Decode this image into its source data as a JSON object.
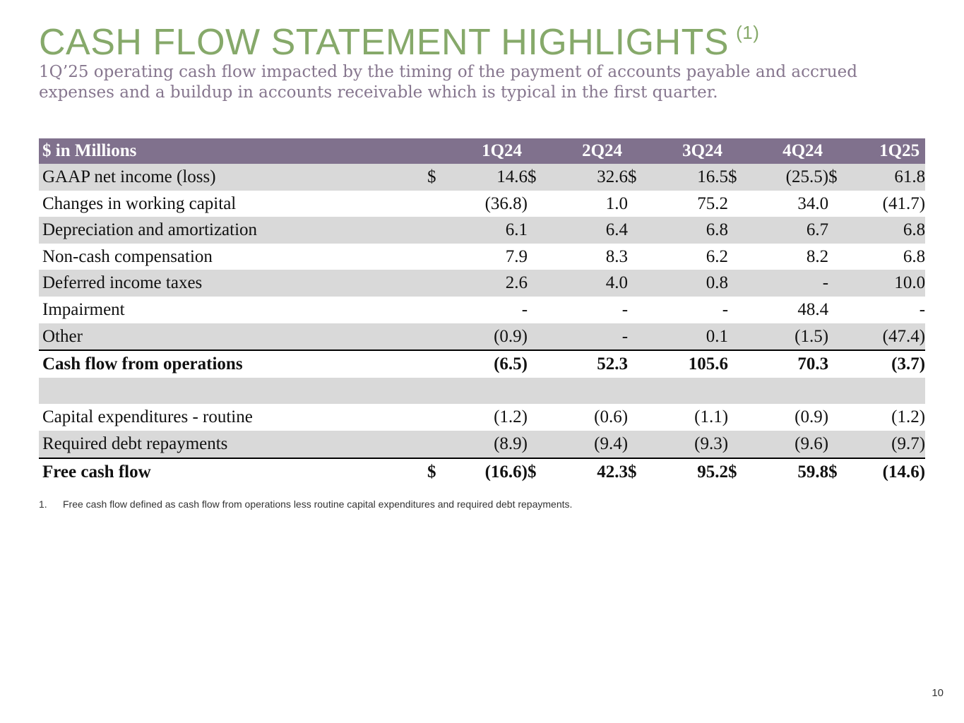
{
  "slide": {
    "title": "CASH FLOW STATEMENT HIGHLIGHTS",
    "title_sup": "(1)",
    "subtitle": "1Q’25 operating cash flow impacted by the timing of the payment of accounts payable and accrued expenses and a buildup in accounts receivable which is typical in the first quarter.",
    "footnote_number": "1.",
    "footnote_text": "Free cash flow defined as cash flow from operations less routine capital expenditures and required debt repayments.",
    "page_number": "10"
  },
  "table": {
    "header_label": "$ in Millions",
    "columns": [
      "1Q24",
      "2Q24",
      "3Q24",
      "4Q24",
      "1Q25"
    ],
    "currency_symbol": "$",
    "rows": [
      {
        "label": "GAAP net income (loss)",
        "values": [
          "14.6",
          "32.6",
          "16.5",
          "(25.5)",
          "61.8"
        ]
      },
      {
        "label": "Changes in working capital",
        "values": [
          "(36.8)",
          "1.0",
          "75.2",
          "34.0",
          "(41.7)"
        ]
      },
      {
        "label": "Depreciation and amortization",
        "values": [
          "6.1",
          "6.4",
          "6.8",
          "6.7",
          "6.8"
        ]
      },
      {
        "label": "Non-cash compensation",
        "values": [
          "7.9",
          "8.3",
          "6.2",
          "8.2",
          "6.8"
        ]
      },
      {
        "label": "Deferred income taxes",
        "values": [
          "2.6",
          "4.0",
          "0.8",
          "-",
          "10.0"
        ]
      },
      {
        "label": "Impairment",
        "values": [
          "-",
          "-",
          "-",
          "48.4",
          "-"
        ]
      },
      {
        "label": "Other",
        "values": [
          "(0.9)",
          "-",
          "0.1",
          "(1.5)",
          "(47.4)"
        ]
      },
      {
        "label": "Cash flow from operations",
        "values": [
          "(6.5)",
          "52.3",
          "105.6",
          "70.3",
          "(3.7)"
        ]
      },
      {
        "label": "Capital expenditures - routine",
        "values": [
          "(1.2)",
          "(0.6)",
          "(1.1)",
          "(0.9)",
          "(1.2)"
        ]
      },
      {
        "label": "Required debt repayments",
        "values": [
          "(8.9)",
          "(9.4)",
          "(9.3)",
          "(9.6)",
          "(9.7)"
        ]
      },
      {
        "label": "Free cash flow",
        "values": [
          "(16.6)",
          "42.3",
          "95.2",
          "59.8",
          "(14.6)"
        ]
      }
    ]
  }
}
